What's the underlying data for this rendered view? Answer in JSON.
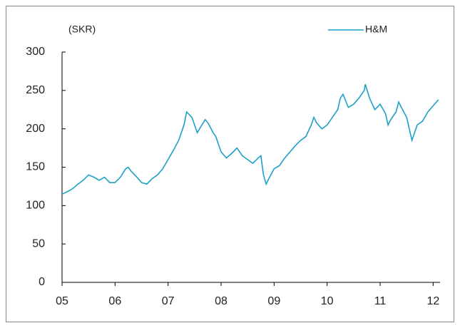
{
  "chart_data": {
    "type": "line",
    "y_label": "(SKR)",
    "x": [
      2005.0,
      2005.1,
      2005.2,
      2005.3,
      2005.4,
      2005.5,
      2005.6,
      2005.7,
      2005.8,
      2005.9,
      2006.0,
      2006.1,
      2006.2,
      2006.25,
      2006.3,
      2006.4,
      2006.5,
      2006.6,
      2006.7,
      2006.8,
      2006.9,
      2007.0,
      2007.1,
      2007.2,
      2007.3,
      2007.35,
      2007.45,
      2007.5,
      2007.55,
      2007.7,
      2007.75,
      2007.85,
      2007.9,
      2008.0,
      2008.1,
      2008.2,
      2008.3,
      2008.4,
      2008.5,
      2008.6,
      2008.7,
      2008.75,
      2008.8,
      2008.85,
      2008.9,
      2009.0,
      2009.1,
      2009.2,
      2009.3,
      2009.4,
      2009.5,
      2009.6,
      2009.7,
      2009.75,
      2009.8,
      2009.9,
      2010.0,
      2010.1,
      2010.2,
      2010.25,
      2010.3,
      2010.4,
      2010.5,
      2010.6,
      2010.7,
      2010.72,
      2010.8,
      2010.9,
      2011.0,
      2011.1,
      2011.15,
      2011.2,
      2011.3,
      2011.35,
      2011.4,
      2011.5,
      2011.55,
      2011.6,
      2011.65,
      2011.7,
      2011.8,
      2011.9,
      2012.0,
      2012.1
    ],
    "series": [
      {
        "name": "H&M",
        "color": "#1ba1c6",
        "values": [
          115,
          118,
          122,
          128,
          133,
          140,
          137,
          133,
          137,
          130,
          130,
          137,
          148,
          150,
          145,
          138,
          130,
          128,
          135,
          140,
          148,
          160,
          172,
          185,
          205,
          222,
          215,
          205,
          195,
          212,
          208,
          195,
          190,
          170,
          162,
          168,
          175,
          165,
          160,
          155,
          162,
          165,
          140,
          128,
          135,
          148,
          152,
          162,
          170,
          178,
          185,
          190,
          205,
          215,
          208,
          200,
          205,
          215,
          225,
          240,
          245,
          228,
          232,
          240,
          250,
          258,
          240,
          225,
          232,
          220,
          205,
          212,
          222,
          235,
          228,
          215,
          200,
          185,
          195,
          205,
          210,
          222,
          230,
          238
        ]
      }
    ],
    "xlim": [
      2005,
      2012.13
    ],
    "xticks": [
      {
        "value": 2005,
        "label": "05"
      },
      {
        "value": 2006,
        "label": "06"
      },
      {
        "value": 2007,
        "label": "07"
      },
      {
        "value": 2008,
        "label": "08"
      },
      {
        "value": 2009,
        "label": "09"
      },
      {
        "value": 2010,
        "label": "10"
      },
      {
        "value": 2011,
        "label": "11"
      },
      {
        "value": 2012,
        "label": "12"
      }
    ],
    "ylim": [
      0,
      300
    ],
    "yticks": [
      0,
      50,
      100,
      150,
      200,
      250,
      300
    ],
    "legend": "top-right"
  }
}
